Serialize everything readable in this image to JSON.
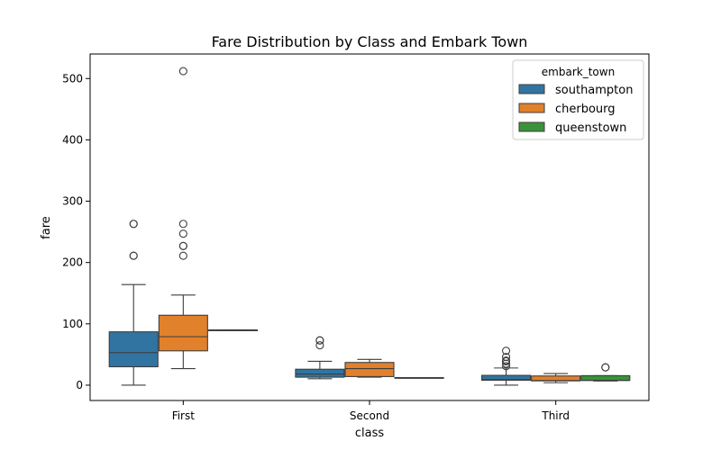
{
  "chart_data": {
    "type": "box",
    "title": "Fare Distribution by Class and Embark Town",
    "xlabel": "class",
    "ylabel": "fare",
    "categories": [
      "First",
      "Second",
      "Third"
    ],
    "ylim": [
      -25,
      540
    ],
    "yticks": [
      0,
      100,
      200,
      300,
      400,
      500
    ],
    "grid": false,
    "legend": {
      "title": "embark_town",
      "position": "top-right"
    },
    "series": [
      {
        "name": "southampton",
        "color": "#3274a1",
        "boxes": [
          {
            "category": "First",
            "whisker_low": 0,
            "q1": 30,
            "median": 53,
            "q3": 87,
            "whisker_high": 164,
            "outliers": [
              211,
              211,
              263,
              263
            ]
          },
          {
            "category": "Second",
            "whisker_low": 10.5,
            "q1": 13,
            "median": 18,
            "q3": 26,
            "whisker_high": 39,
            "outliers": [
              65,
              73,
              73
            ]
          },
          {
            "category": "Third",
            "whisker_low": 0,
            "q1": 8,
            "median": 9,
            "q3": 16,
            "whisker_high": 28,
            "outliers": [
              31,
              35,
              39,
              40,
              46,
              56
            ]
          }
        ]
      },
      {
        "name": "cherbourg",
        "color": "#e1812c",
        "boxes": [
          {
            "category": "First",
            "whisker_low": 27,
            "q1": 56,
            "median": 79,
            "q3": 114,
            "whisker_high": 147,
            "outliers": [
              211,
              227,
              227,
              247,
              263,
              512
            ]
          },
          {
            "category": "Second",
            "whisker_low": 13,
            "q1": 14,
            "median": 27,
            "q3": 37,
            "whisker_high": 42,
            "outliers": []
          },
          {
            "category": "Third",
            "whisker_low": 4,
            "q1": 7,
            "median": 7.5,
            "q3": 15,
            "whisker_high": 19,
            "outliers": []
          }
        ]
      },
      {
        "name": "queenstown",
        "color": "#3a923a",
        "boxes": [
          {
            "category": "First",
            "whisker_low": 90,
            "q1": 90,
            "median": 90,
            "q3": 90,
            "whisker_high": 90,
            "outliers": []
          },
          {
            "category": "Second",
            "whisker_low": 12.35,
            "q1": 12.35,
            "median": 12.35,
            "q3": 12.35,
            "whisker_high": 12.35,
            "outliers": []
          },
          {
            "category": "Third",
            "whisker_low": 6.75,
            "q1": 7.75,
            "median": 7.75,
            "q3": 15.5,
            "whisker_high": 15.5,
            "outliers": [
              29,
              29
            ]
          }
        ]
      }
    ]
  }
}
